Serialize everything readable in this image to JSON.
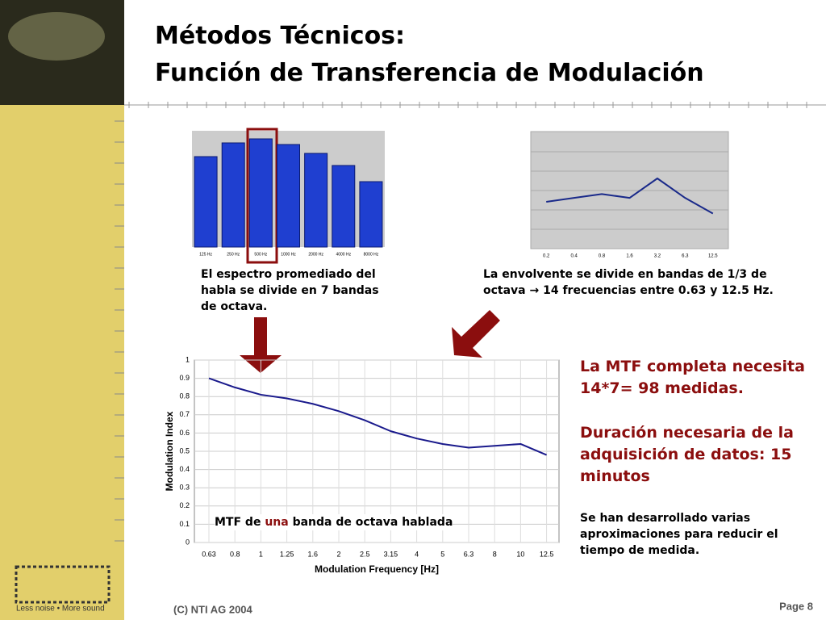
{
  "title_line1": "Métodos Técnicos:",
  "title_line2": "Función de Transferencia de Modulación",
  "spectrum_chart": {
    "type": "bar",
    "categories": [
      "125 Hz",
      "250 Hz",
      "500 Hz",
      "1000 Hz",
      "2000 Hz",
      "4000 Hz",
      "8000 Hz"
    ],
    "values": [
      112,
      129,
      134,
      127,
      116,
      101,
      81
    ],
    "ylim": [
      0,
      144
    ],
    "color": "#1f3fd0"
  },
  "spectrum_caption": "El espectro promediado del habla se divide en 7 bandas de octava.",
  "envelope_chart": {
    "type": "line",
    "categories": [
      "0.2",
      "0.4",
      "0.8",
      "1.6",
      "3.2",
      "6.3",
      "12.5"
    ],
    "values": [
      2.4,
      2.6,
      2.8,
      2.6,
      3.6,
      2.6,
      1.8
    ],
    "ylim": [
      0,
      6
    ],
    "color": "#1a2a8a"
  },
  "envelope_caption": "La envolvente se divide en bandas de 1/3 de octava → 14 frecuencias entre 0.63 y 12.5 Hz.",
  "mtf_chart": {
    "type": "line",
    "categories": [
      "0.63",
      "0.8",
      "1",
      "1.25",
      "1.6",
      "2",
      "2.5",
      "3.15",
      "4",
      "5",
      "6.3",
      "8",
      "10",
      "12.5"
    ],
    "values": [
      0.9,
      0.85,
      0.81,
      0.79,
      0.76,
      0.72,
      0.67,
      0.61,
      0.57,
      0.54,
      0.52,
      0.53,
      0.54,
      0.48
    ],
    "ylim": [
      0,
      1
    ],
    "yticks": [
      0,
      0.1,
      0.2,
      0.3,
      0.4,
      0.5,
      0.6,
      0.7,
      0.8,
      0.9,
      1
    ],
    "x_label": "Modulation Frequency [Hz]",
    "y_label": "Modulation Index",
    "color": "#1a1a8c",
    "grid": true
  },
  "mtf_caption": [
    "MTF de ",
    "una",
    " banda de octava hablada"
  ],
  "note_1": "La MTF completa necesita 14*7= 98 medidas.",
  "note_2": "Duración necesaria de la adquisición de datos: 15 minutos",
  "note_3": "Se han desarrollado varias aproximaciones para reducir el tiempo de medida.",
  "logo_text": "Less noise • More sound",
  "footer_left": "(C) NTI AG 2004",
  "footer_right": "Page 8"
}
